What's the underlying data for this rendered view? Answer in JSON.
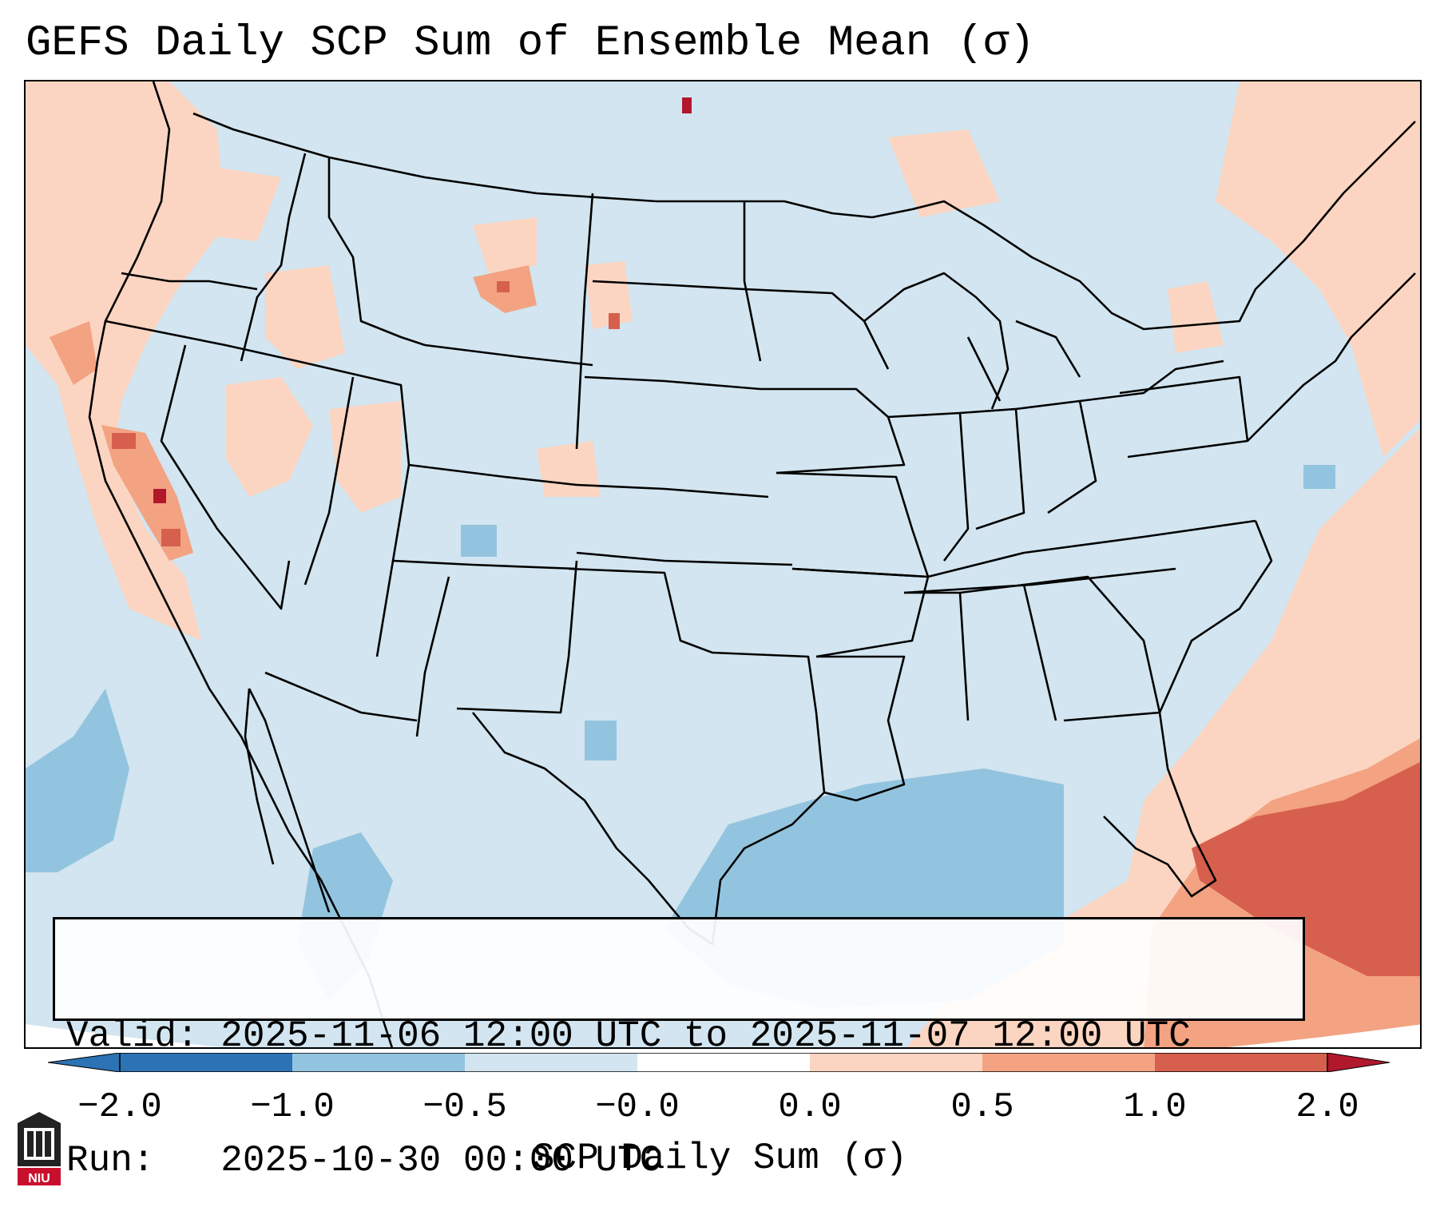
{
  "title": "GEFS Daily SCP Sum of Ensemble Mean (σ)",
  "info": {
    "valid_line": "Valid: 2025-11-06 12:00 UTC to 2025-11-07 12:00 UTC",
    "run_line": "Run:   2025-10-30 00:00 UTC"
  },
  "colorbar": {
    "label": "SCP Daily Sum (σ)",
    "ticks": [
      "−2.0",
      "−1.0",
      "−0.5",
      "−0.0",
      "0.0",
      "0.5",
      "1.0",
      "2.0"
    ],
    "colors": [
      "#2c73b5",
      "#93c4df",
      "#d2e5f0",
      "#fbd5c1",
      "#f3a382",
      "#d6604d",
      "#b2182b"
    ]
  },
  "logo": {
    "text": "NIU",
    "name": "niu-logo-icon"
  },
  "map": {
    "region": "Continental United States",
    "base_color": "#d2e5f0",
    "features": [
      "state-borders",
      "country-borders",
      "coastlines"
    ]
  }
}
